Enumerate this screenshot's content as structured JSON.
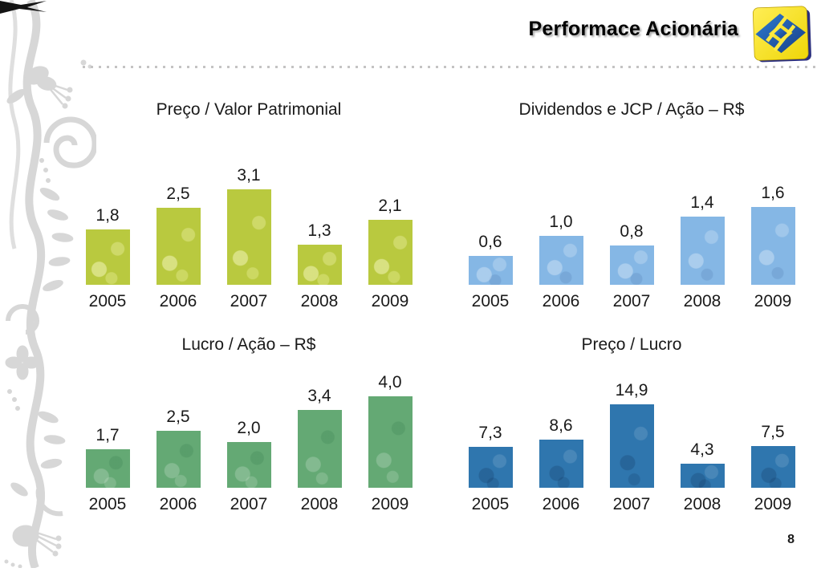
{
  "header": {
    "title": "Performace Acionária",
    "logo_name": "banco-do-brasil-logo",
    "logo_colors": {
      "yellow": "#ffe93f",
      "blue": "#2457a5"
    },
    "divider_color": "#c4c3c3"
  },
  "page_number": "8",
  "chart_data": [
    {
      "type": "bar",
      "title": "Preço / Valor Patrimonial",
      "categories": [
        "2005",
        "2006",
        "2007",
        "2008",
        "2009"
      ],
      "values": [
        1.8,
        2.5,
        3.1,
        1.3,
        2.1
      ],
      "labels": [
        "1,8",
        "2,5",
        "3,1",
        "1,3",
        "2,1"
      ],
      "bar_color": "#b9c93f",
      "xlabel": "",
      "ylabel": "",
      "grid": false,
      "legend": "none"
    },
    {
      "type": "bar",
      "title": "Dividendos e JCP / Ação – R$",
      "categories": [
        "2005",
        "2006",
        "2007",
        "2008",
        "2009"
      ],
      "values": [
        0.6,
        1.0,
        0.8,
        1.4,
        1.6
      ],
      "labels": [
        "0,6",
        "1,0",
        "0,8",
        "1,4",
        "1,6"
      ],
      "bar_color": "#85b7e5",
      "xlabel": "",
      "ylabel": "",
      "grid": false,
      "legend": "none"
    },
    {
      "type": "bar",
      "title": "Lucro / Ação – R$",
      "categories": [
        "2005",
        "2006",
        "2007",
        "2008",
        "2009"
      ],
      "values": [
        1.7,
        2.5,
        2.0,
        3.4,
        4.0
      ],
      "labels": [
        "1,7",
        "2,5",
        "2,0",
        "3,4",
        "4,0"
      ],
      "bar_color": "#64a974",
      "xlabel": "",
      "ylabel": "",
      "grid": false,
      "legend": "none"
    },
    {
      "type": "bar",
      "title": "Preço / Lucro",
      "categories": [
        "2005",
        "2006",
        "2007",
        "2008",
        "2009"
      ],
      "values": [
        7.3,
        8.6,
        14.9,
        4.3,
        7.5
      ],
      "labels": [
        "7,3",
        "8,6",
        "14,9",
        "4,3",
        "7,5"
      ],
      "bar_color": "#2f76ae",
      "xlabel": "",
      "ylabel": "",
      "grid": false,
      "legend": "none"
    }
  ]
}
